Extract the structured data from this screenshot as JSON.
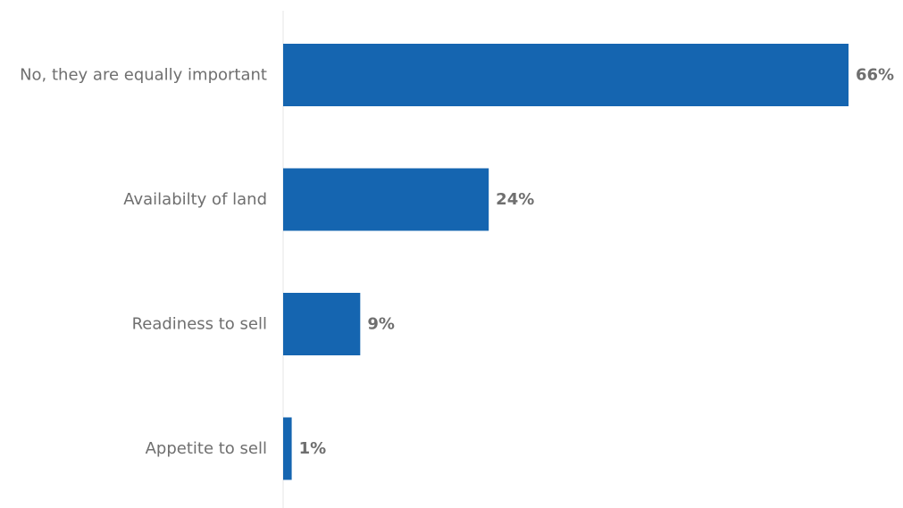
{
  "chart_data": {
    "type": "bar",
    "orientation": "horizontal",
    "categories": [
      "No, they are equally important",
      "Availabilty of land",
      "Readiness to sell",
      "Appetite to sell"
    ],
    "values": [
      66,
      24,
      9,
      1
    ],
    "value_labels": [
      "66%",
      "24%",
      "9%",
      "1%"
    ],
    "unit": "%",
    "xlim": [
      0,
      66
    ],
    "grid": false,
    "legend": "none",
    "bar_color": "#1565b0",
    "label_color": "#6f6f6f",
    "axis_color": "#e6e6e6"
  }
}
